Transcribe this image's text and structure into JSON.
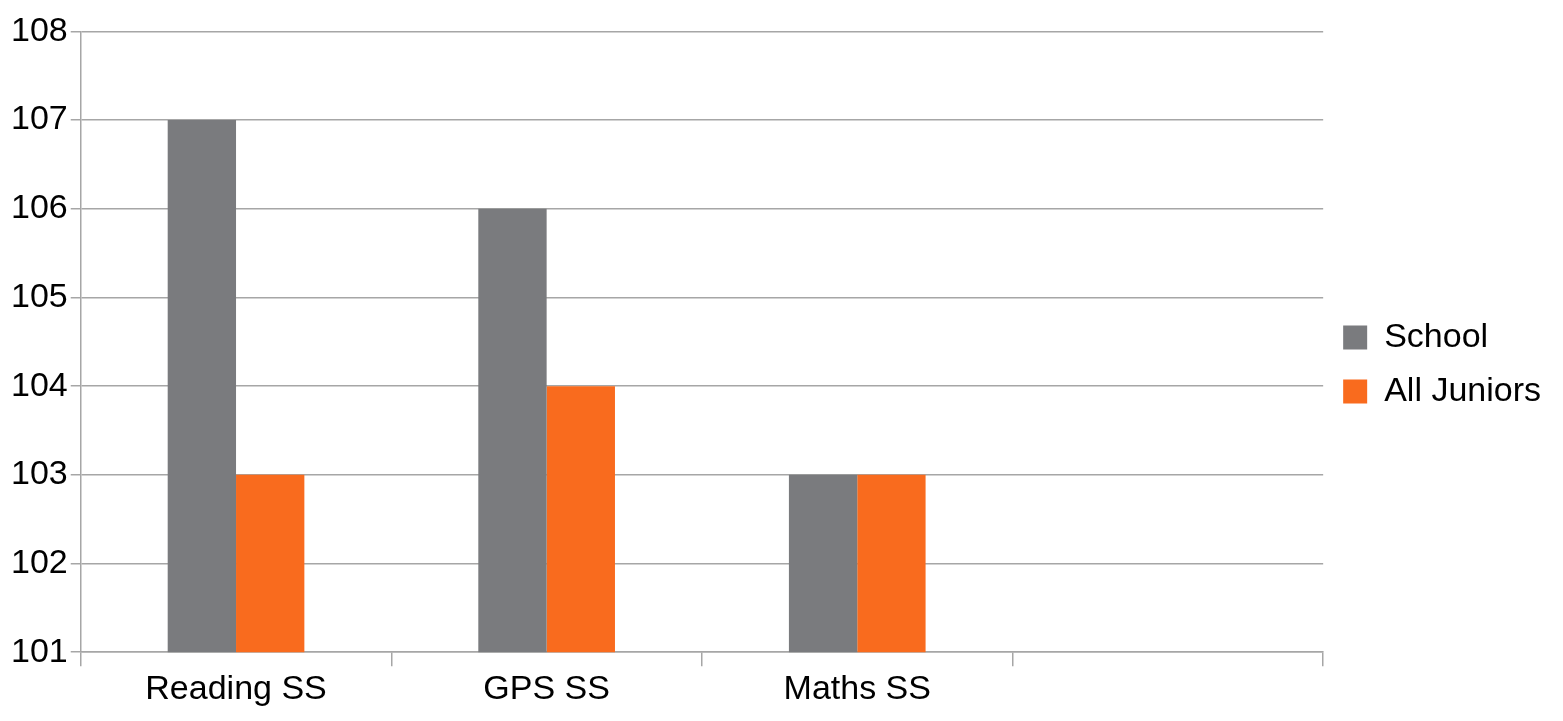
{
  "chart_data": {
    "type": "bar",
    "categories": [
      "Reading SS",
      "GPS SS",
      "Maths SS",
      null
    ],
    "series": [
      {
        "name": "School",
        "color": "#7a7b7e",
        "values": [
          107,
          106,
          103,
          null
        ]
      },
      {
        "name": "All Juniors",
        "color": "#f96b1e",
        "values": [
          103,
          104,
          103,
          null
        ]
      }
    ],
    "ylim": [
      101,
      108
    ],
    "yticks": [
      101,
      102,
      103,
      104,
      105,
      106,
      107,
      108
    ],
    "grid": "y",
    "legend": "right"
  }
}
